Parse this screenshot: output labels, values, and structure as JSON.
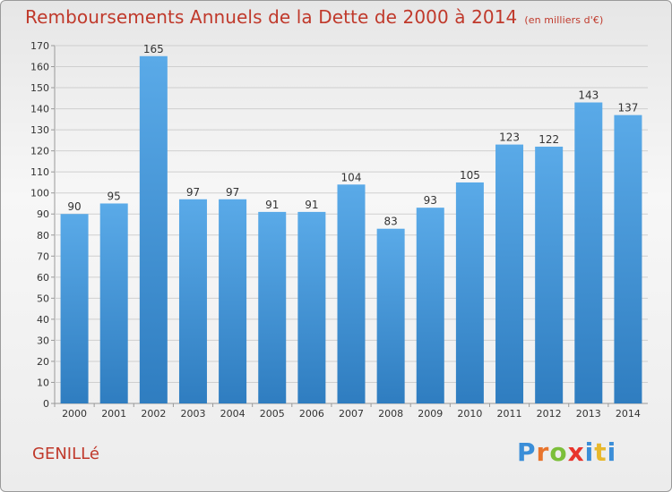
{
  "header": {
    "title": "Remboursements Annuels de la Dette de 2000 à 2014",
    "unit": "(en milliers d'€)"
  },
  "footer": {
    "town": "GENILLé",
    "brand_letters": [
      "P",
      "r",
      "o",
      "x",
      "i",
      "t",
      "i"
    ],
    "brand_colors": [
      "#3b8ed8",
      "#e8742c",
      "#7cbf3a",
      "#e8342c",
      "#3b8ed8",
      "#e8b82c",
      "#3b8ed8"
    ]
  },
  "colors": {
    "bar_top": "#5aaae8",
    "bar_bottom": "#2f7dc0",
    "grid": "#cfcfcf",
    "text": "#333333"
  },
  "chart_data": {
    "type": "bar",
    "title": "Remboursements Annuels de la Dette de 2000 à 2014",
    "xlabel": "",
    "ylabel": "",
    "categories": [
      "2000",
      "2001",
      "2002",
      "2003",
      "2004",
      "2005",
      "2006",
      "2007",
      "2008",
      "2009",
      "2010",
      "2011",
      "2012",
      "2013",
      "2014"
    ],
    "values": [
      90,
      95,
      165,
      97,
      97,
      91,
      91,
      104,
      83,
      93,
      105,
      123,
      122,
      143,
      137
    ],
    "ylim": [
      0,
      170
    ],
    "yticks": [
      0,
      10,
      20,
      30,
      40,
      50,
      60,
      70,
      80,
      90,
      100,
      110,
      120,
      130,
      140,
      150,
      160,
      170
    ]
  }
}
